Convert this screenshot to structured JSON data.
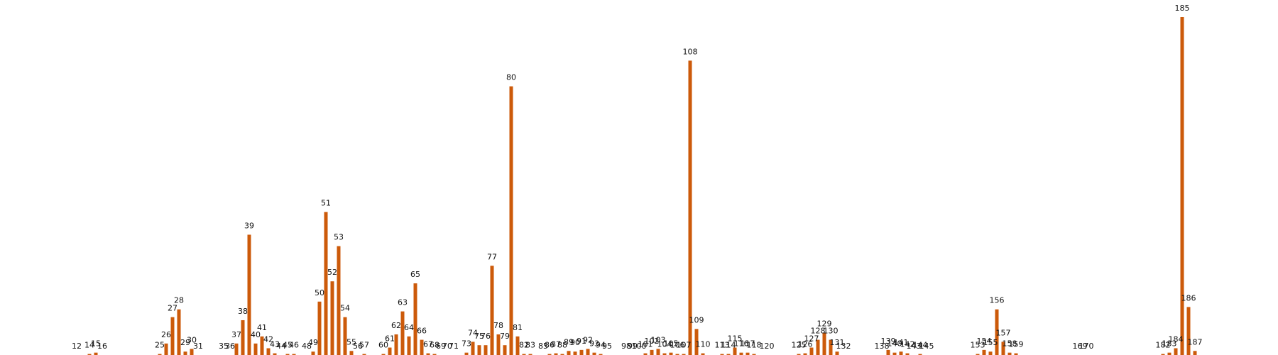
{
  "chart_data": {
    "type": "bar",
    "title": "",
    "xlabel": "",
    "ylabel": "",
    "grid": false,
    "legend": false,
    "color": "#cc5a0a",
    "xlim": [
      0,
      200
    ],
    "ylim": [
      0,
      1
    ],
    "bars": [
      {
        "x": 12,
        "value": 0.0,
        "label": "12"
      },
      {
        "x": 14,
        "value": 0.003,
        "label": "14"
      },
      {
        "x": 15,
        "value": 0.007,
        "label": "15"
      },
      {
        "x": 16,
        "value": 0.0,
        "label": "16"
      },
      {
        "x": 25,
        "value": 0.003,
        "label": "25"
      },
      {
        "x": 26,
        "value": 0.034,
        "label": "26"
      },
      {
        "x": 27,
        "value": 0.112,
        "label": "27"
      },
      {
        "x": 28,
        "value": 0.135,
        "label": "28"
      },
      {
        "x": 29,
        "value": 0.01,
        "label": "29"
      },
      {
        "x": 30,
        "value": 0.018,
        "label": "30"
      },
      {
        "x": 31,
        "value": 0.0,
        "label": "31"
      },
      {
        "x": 35,
        "value": 0.0,
        "label": "35"
      },
      {
        "x": 36,
        "value": 0.0,
        "label": "36"
      },
      {
        "x": 37,
        "value": 0.034,
        "label": "37"
      },
      {
        "x": 38,
        "value": 0.103,
        "label": "38"
      },
      {
        "x": 39,
        "value": 0.356,
        "label": "39"
      },
      {
        "x": 40,
        "value": 0.034,
        "label": "40"
      },
      {
        "x": 41,
        "value": 0.055,
        "label": "41"
      },
      {
        "x": 42,
        "value": 0.02,
        "label": "42"
      },
      {
        "x": 43,
        "value": 0.005,
        "label": "43"
      },
      {
        "x": 44,
        "value": 0.0,
        "label": "44"
      },
      {
        "x": 45,
        "value": 0.003,
        "label": "45"
      },
      {
        "x": 46,
        "value": 0.003,
        "label": "46"
      },
      {
        "x": 48,
        "value": 0.0,
        "label": "48"
      },
      {
        "x": 49,
        "value": 0.01,
        "label": "49"
      },
      {
        "x": 50,
        "value": 0.158,
        "label": "50"
      },
      {
        "x": 51,
        "value": 0.423,
        "label": "51"
      },
      {
        "x": 52,
        "value": 0.218,
        "label": "52"
      },
      {
        "x": 53,
        "value": 0.322,
        "label": "53"
      },
      {
        "x": 54,
        "value": 0.112,
        "label": "54"
      },
      {
        "x": 55,
        "value": 0.012,
        "label": "55"
      },
      {
        "x": 56,
        "value": 0.0,
        "label": "56"
      },
      {
        "x": 57,
        "value": 0.003,
        "label": "57"
      },
      {
        "x": 60,
        "value": 0.003,
        "label": "60"
      },
      {
        "x": 61,
        "value": 0.022,
        "label": "61"
      },
      {
        "x": 62,
        "value": 0.061,
        "label": "62"
      },
      {
        "x": 63,
        "value": 0.129,
        "label": "63"
      },
      {
        "x": 64,
        "value": 0.055,
        "label": "64"
      },
      {
        "x": 65,
        "value": 0.212,
        "label": "65"
      },
      {
        "x": 66,
        "value": 0.045,
        "label": "66"
      },
      {
        "x": 67,
        "value": 0.005,
        "label": "67"
      },
      {
        "x": 68,
        "value": 0.003,
        "label": "68"
      },
      {
        "x": 69,
        "value": 0.0,
        "label": "69"
      },
      {
        "x": 70,
        "value": 0.0,
        "label": "70"
      },
      {
        "x": 71,
        "value": 0.0,
        "label": "71"
      },
      {
        "x": 73,
        "value": 0.007,
        "label": "73"
      },
      {
        "x": 74,
        "value": 0.039,
        "label": "74"
      },
      {
        "x": 75,
        "value": 0.029,
        "label": "75"
      },
      {
        "x": 76,
        "value": 0.029,
        "label": "76"
      },
      {
        "x": 77,
        "value": 0.264,
        "label": "77"
      },
      {
        "x": 78,
        "value": 0.061,
        "label": "78"
      },
      {
        "x": 79,
        "value": 0.029,
        "label": "79"
      },
      {
        "x": 80,
        "value": 0.795,
        "label": "80"
      },
      {
        "x": 81,
        "value": 0.055,
        "label": "81"
      },
      {
        "x": 82,
        "value": 0.003,
        "label": "82"
      },
      {
        "x": 83,
        "value": 0.003,
        "label": "83"
      },
      {
        "x": 85,
        "value": 0.0,
        "label": "85"
      },
      {
        "x": 86,
        "value": 0.003,
        "label": "86"
      },
      {
        "x": 87,
        "value": 0.005,
        "label": "87"
      },
      {
        "x": 88,
        "value": 0.003,
        "label": "88"
      },
      {
        "x": 89,
        "value": 0.012,
        "label": "89"
      },
      {
        "x": 90,
        "value": 0.01,
        "label": "90"
      },
      {
        "x": 91,
        "value": 0.015,
        "label": "91"
      },
      {
        "x": 92,
        "value": 0.018,
        "label": "92"
      },
      {
        "x": 93,
        "value": 0.007,
        "label": "93"
      },
      {
        "x": 94,
        "value": 0.003,
        "label": "94"
      },
      {
        "x": 95,
        "value": 0.0,
        "label": "95"
      },
      {
        "x": 98,
        "value": 0.0,
        "label": "98"
      },
      {
        "x": 99,
        "value": 0.0,
        "label": "99"
      },
      {
        "x": 100,
        "value": 0.0,
        "label": "100"
      },
      {
        "x": 101,
        "value": 0.005,
        "label": "101"
      },
      {
        "x": 102,
        "value": 0.015,
        "label": "102"
      },
      {
        "x": 103,
        "value": 0.018,
        "label": "103"
      },
      {
        "x": 104,
        "value": 0.005,
        "label": "104"
      },
      {
        "x": 105,
        "value": 0.007,
        "label": "105"
      },
      {
        "x": 106,
        "value": 0.003,
        "label": "106"
      },
      {
        "x": 107,
        "value": 0.003,
        "label": "107"
      },
      {
        "x": 108,
        "value": 0.871,
        "label": "108"
      },
      {
        "x": 109,
        "value": 0.077,
        "label": "109"
      },
      {
        "x": 110,
        "value": 0.005,
        "label": "110"
      },
      {
        "x": 113,
        "value": 0.003,
        "label": "113"
      },
      {
        "x": 114,
        "value": 0.003,
        "label": "114"
      },
      {
        "x": 115,
        "value": 0.022,
        "label": "115"
      },
      {
        "x": 116,
        "value": 0.007,
        "label": "116"
      },
      {
        "x": 117,
        "value": 0.007,
        "label": "117"
      },
      {
        "x": 118,
        "value": 0.003,
        "label": "118"
      },
      {
        "x": 120,
        "value": 0.0,
        "label": "120"
      },
      {
        "x": 125,
        "value": 0.003,
        "label": "125"
      },
      {
        "x": 126,
        "value": 0.005,
        "label": "126"
      },
      {
        "x": 127,
        "value": 0.022,
        "label": "127"
      },
      {
        "x": 128,
        "value": 0.045,
        "label": "128"
      },
      {
        "x": 129,
        "value": 0.066,
        "label": "129"
      },
      {
        "x": 130,
        "value": 0.045,
        "label": "130"
      },
      {
        "x": 131,
        "value": 0.01,
        "label": "131"
      },
      {
        "x": 132,
        "value": 0.0,
        "label": "132"
      },
      {
        "x": 138,
        "value": 0.0,
        "label": "138"
      },
      {
        "x": 139,
        "value": 0.015,
        "label": "139"
      },
      {
        "x": 140,
        "value": 0.007,
        "label": "140"
      },
      {
        "x": 141,
        "value": 0.01,
        "label": "141"
      },
      {
        "x": 142,
        "value": 0.005,
        "label": "142"
      },
      {
        "x": 143,
        "value": 0.0,
        "label": "143"
      },
      {
        "x": 144,
        "value": 0.003,
        "label": "144"
      },
      {
        "x": 145,
        "value": 0.0,
        "label": "145"
      },
      {
        "x": 153,
        "value": 0.003,
        "label": "153"
      },
      {
        "x": 154,
        "value": 0.015,
        "label": "154"
      },
      {
        "x": 155,
        "value": 0.01,
        "label": "155"
      },
      {
        "x": 156,
        "value": 0.135,
        "label": "156"
      },
      {
        "x": 157,
        "value": 0.039,
        "label": "157"
      },
      {
        "x": 158,
        "value": 0.007,
        "label": "158"
      },
      {
        "x": 159,
        "value": 0.005,
        "label": "159"
      },
      {
        "x": 169,
        "value": 0.0,
        "label": "169"
      },
      {
        "x": 170,
        "value": 0.0,
        "label": "170"
      },
      {
        "x": 182,
        "value": 0.003,
        "label": "182"
      },
      {
        "x": 183,
        "value": 0.007,
        "label": "183"
      },
      {
        "x": 184,
        "value": 0.02,
        "label": "184"
      },
      {
        "x": 185,
        "value": 1.0,
        "label": "185"
      },
      {
        "x": 186,
        "value": 0.142,
        "label": "186"
      },
      {
        "x": 187,
        "value": 0.012,
        "label": "187"
      }
    ]
  }
}
